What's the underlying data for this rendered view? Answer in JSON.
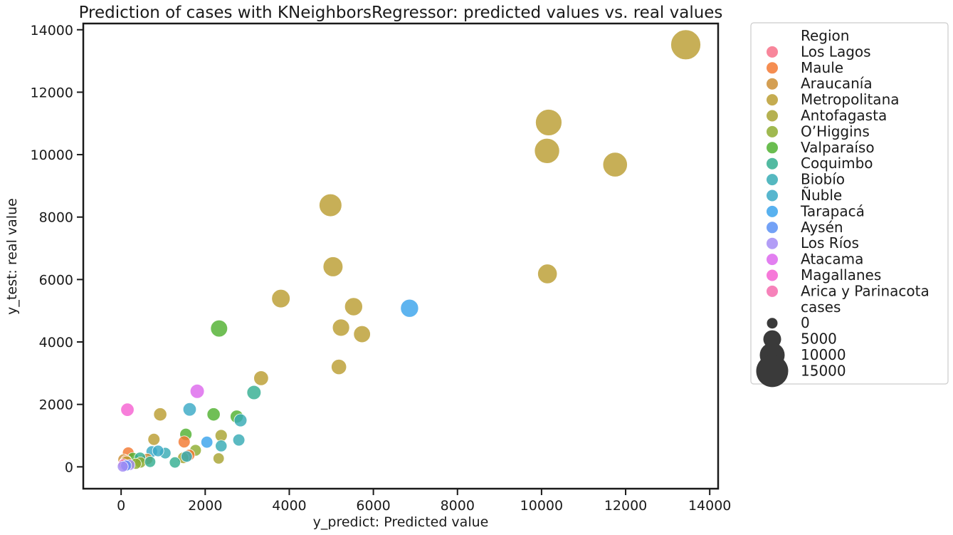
{
  "chart_data": {
    "type": "scatter",
    "title": "Prediction of cases with KNeighborsRegressor: predicted values vs. real values",
    "xlabel": "y_predict: Predicted value",
    "ylabel": "y_test: real value",
    "xlim": [
      -900,
      14200
    ],
    "ylim": [
      -700,
      14200
    ],
    "xticks": [
      0,
      2000,
      4000,
      6000,
      8000,
      10000,
      12000,
      14000
    ],
    "yticks": [
      0,
      2000,
      4000,
      6000,
      8000,
      10000,
      12000,
      14000
    ],
    "grid": false,
    "legend_position": "outside-right",
    "legend_hue_title": "Region",
    "legend_size_title": "cases",
    "size_legend": [
      0,
      5000,
      10000,
      15000
    ],
    "series": [
      {
        "name": "Los Lagos",
        "color": "#f77189",
        "points": [
          {
            "x": 80,
            "y": 120,
            "cases": 400
          },
          {
            "x": 150,
            "y": 60,
            "cases": 300
          }
        ]
      },
      {
        "name": "Maule",
        "color": "#f37932",
        "points": [
          {
            "x": 170,
            "y": 450,
            "cases": 600
          },
          {
            "x": 1500,
            "y": 800,
            "cases": 900
          },
          {
            "x": 1620,
            "y": 380,
            "cases": 500
          },
          {
            "x": 120,
            "y": 200,
            "cases": 300
          }
        ]
      },
      {
        "name": "Araucanía",
        "color": "#cc8e35",
        "points": [
          {
            "x": 60,
            "y": 230,
            "cases": 500
          },
          {
            "x": 620,
            "y": 250,
            "cases": 400
          }
        ]
      },
      {
        "name": "Metropolitana",
        "color": "#bb9d32",
        "points": [
          {
            "x": 13430,
            "y": 13520,
            "cases": 13500
          },
          {
            "x": 10170,
            "y": 11030,
            "cases": 11000
          },
          {
            "x": 10130,
            "y": 10120,
            "cases": 10100
          },
          {
            "x": 11750,
            "y": 9680,
            "cases": 9700
          },
          {
            "x": 4980,
            "y": 8380,
            "cases": 8400
          },
          {
            "x": 5040,
            "y": 6410,
            "cases": 6400
          },
          {
            "x": 10140,
            "y": 6180,
            "cases": 6200
          },
          {
            "x": 3800,
            "y": 5390,
            "cases": 5400
          },
          {
            "x": 5530,
            "y": 5130,
            "cases": 5100
          },
          {
            "x": 5230,
            "y": 4460,
            "cases": 4500
          },
          {
            "x": 5730,
            "y": 4250,
            "cases": 4300
          },
          {
            "x": 5180,
            "y": 3200,
            "cases": 3200
          },
          {
            "x": 3330,
            "y": 2840,
            "cases": 2800
          },
          {
            "x": 930,
            "y": 1680,
            "cases": 1700
          },
          {
            "x": 780,
            "y": 880,
            "cases": 900
          },
          {
            "x": 130,
            "y": 170,
            "cases": 300
          }
        ]
      },
      {
        "name": "Antofagasta",
        "color": "#a8a332",
        "points": [
          {
            "x": 2380,
            "y": 1000,
            "cases": 1000
          },
          {
            "x": 1480,
            "y": 290,
            "cases": 500
          },
          {
            "x": 2320,
            "y": 270,
            "cases": 300
          }
        ]
      },
      {
        "name": "O’Higgins",
        "color": "#8fad31",
        "points": [
          {
            "x": 1770,
            "y": 530,
            "cases": 600
          },
          {
            "x": 460,
            "y": 140,
            "cases": 300
          },
          {
            "x": 350,
            "y": 100,
            "cases": 200
          }
        ]
      },
      {
        "name": "Valparaíso",
        "color": "#50b131",
        "points": [
          {
            "x": 2330,
            "y": 4430,
            "cases": 4400
          },
          {
            "x": 2750,
            "y": 1610,
            "cases": 1600
          },
          {
            "x": 2200,
            "y": 1680,
            "cases": 1700
          },
          {
            "x": 1540,
            "y": 1040,
            "cases": 1000
          },
          {
            "x": 280,
            "y": 280,
            "cases": 400
          }
        ]
      },
      {
        "name": "Coquimbo",
        "color": "#34ae91",
        "points": [
          {
            "x": 3160,
            "y": 2380,
            "cases": 2400
          },
          {
            "x": 450,
            "y": 290,
            "cases": 400
          },
          {
            "x": 690,
            "y": 160,
            "cases": 300
          },
          {
            "x": 1280,
            "y": 140,
            "cases": 300
          }
        ]
      },
      {
        "name": "Biobío",
        "color": "#37abb5",
        "points": [
          {
            "x": 2840,
            "y": 1490,
            "cases": 1500
          },
          {
            "x": 2800,
            "y": 860,
            "cases": 900
          },
          {
            "x": 2380,
            "y": 670,
            "cases": 700
          },
          {
            "x": 1050,
            "y": 440,
            "cases": 500
          },
          {
            "x": 1560,
            "y": 330,
            "cases": 400
          }
        ]
      },
      {
        "name": "Ñuble",
        "color": "#3aa9c6",
        "points": [
          {
            "x": 1630,
            "y": 1840,
            "cases": 1800
          },
          {
            "x": 730,
            "y": 490,
            "cases": 500
          },
          {
            "x": 880,
            "y": 510,
            "cases": 500
          }
        ]
      },
      {
        "name": "Tarapacá",
        "color": "#3ba3ec",
        "points": [
          {
            "x": 6860,
            "y": 5080,
            "cases": 5100
          },
          {
            "x": 2040,
            "y": 790,
            "cases": 800
          }
        ]
      },
      {
        "name": "Aysén",
        "color": "#5b91f4",
        "points": [
          {
            "x": 120,
            "y": 40,
            "cases": 100
          }
        ]
      },
      {
        "name": "Los Ríos",
        "color": "#a48cf4",
        "points": [
          {
            "x": 40,
            "y": 10,
            "cases": 100
          },
          {
            "x": 200,
            "y": 60,
            "cases": 200
          }
        ]
      },
      {
        "name": "Atacama",
        "color": "#dd69ed",
        "points": [
          {
            "x": 1810,
            "y": 2420,
            "cases": 2400
          },
          {
            "x": 100,
            "y": 30,
            "cases": 150
          }
        ]
      },
      {
        "name": "Magallanes",
        "color": "#f562d2",
        "points": [
          {
            "x": 150,
            "y": 1830,
            "cases": 1800
          }
        ]
      },
      {
        "name": "Arica y Parinacota",
        "color": "#f56cae",
        "points": [
          {
            "x": 60,
            "y": 80,
            "cases": 200
          }
        ]
      }
    ]
  }
}
